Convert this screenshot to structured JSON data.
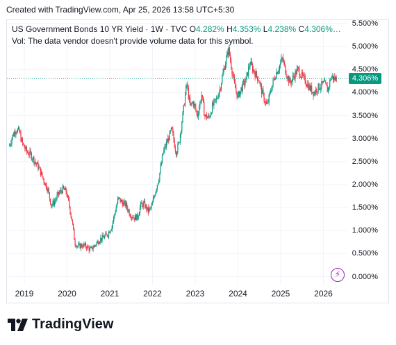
{
  "header": {
    "text": "Created with TradingView.com, Apr 25, 2026 13:58 UTC+5:30"
  },
  "legend": {
    "symbol": "US Government Bonds 10 YR Yield · 1W · TVC",
    "o_label": "O",
    "o_value": "4.282%",
    "h_label": "H",
    "h_value": "4.353%",
    "l_label": "L",
    "l_value": "4.238%",
    "c_label": "C",
    "c_value": "4.306%…",
    "volume_note": "Vol: The data vendor doesn't provide volume data for this symbol."
  },
  "last_price_label": "4.306%",
  "brand": {
    "name": "TradingView",
    "icon": "tradingview-logo-icon"
  },
  "colors": {
    "up": "#089981",
    "down": "#f23645",
    "accent": "#9c27b0",
    "grid": "#f0f3fa"
  },
  "chart_data": {
    "type": "candlestick",
    "title": "US Government Bonds 10 YR Yield · 1W · TVC",
    "ylabel": "",
    "y_unit": "%",
    "ylim": [
      -0.1,
      5.6
    ],
    "y_ticks": [
      "5.500%",
      "5.000%",
      "4.500%",
      "4.000%",
      "3.500%",
      "3.000%",
      "2.500%",
      "2.000%",
      "1.500%",
      "1.000%",
      "0.500%",
      "0.000%"
    ],
    "x_ticks": [
      "2019",
      "2020",
      "2021",
      "2022",
      "2023",
      "2024",
      "2025",
      "2026"
    ],
    "last_close": 4.306,
    "series": [
      {
        "name": "",
        "points": [
          {
            "t": 2018.65,
            "close": 2.85
          },
          {
            "t": 2018.72,
            "close": 3.05
          },
          {
            "t": 2018.8,
            "close": 3.2
          },
          {
            "t": 2018.88,
            "close": 3.15
          },
          {
            "t": 2018.95,
            "close": 2.9
          },
          {
            "t": 2019.05,
            "close": 2.72
          },
          {
            "t": 2019.15,
            "close": 2.65
          },
          {
            "t": 2019.25,
            "close": 2.5
          },
          {
            "t": 2019.35,
            "close": 2.35
          },
          {
            "t": 2019.45,
            "close": 2.1
          },
          {
            "t": 2019.55,
            "close": 1.9
          },
          {
            "t": 2019.63,
            "close": 1.55
          },
          {
            "t": 2019.72,
            "close": 1.65
          },
          {
            "t": 2019.8,
            "close": 1.8
          },
          {
            "t": 2019.9,
            "close": 1.9
          },
          {
            "t": 2019.98,
            "close": 1.85
          },
          {
            "t": 2020.05,
            "close": 1.55
          },
          {
            "t": 2020.12,
            "close": 1.2
          },
          {
            "t": 2020.18,
            "close": 0.75
          },
          {
            "t": 2020.25,
            "close": 0.65
          },
          {
            "t": 2020.35,
            "close": 0.68
          },
          {
            "t": 2020.45,
            "close": 0.66
          },
          {
            "t": 2020.55,
            "close": 0.58
          },
          {
            "t": 2020.65,
            "close": 0.68
          },
          {
            "t": 2020.75,
            "close": 0.8
          },
          {
            "t": 2020.85,
            "close": 0.85
          },
          {
            "t": 2020.95,
            "close": 0.92
          },
          {
            "t": 2021.05,
            "close": 1.1
          },
          {
            "t": 2021.12,
            "close": 1.4
          },
          {
            "t": 2021.2,
            "close": 1.7
          },
          {
            "t": 2021.28,
            "close": 1.62
          },
          {
            "t": 2021.38,
            "close": 1.55
          },
          {
            "t": 2021.48,
            "close": 1.35
          },
          {
            "t": 2021.58,
            "close": 1.28
          },
          {
            "t": 2021.65,
            "close": 1.3
          },
          {
            "t": 2021.72,
            "close": 1.55
          },
          {
            "t": 2021.8,
            "close": 1.58
          },
          {
            "t": 2021.9,
            "close": 1.42
          },
          {
            "t": 2021.98,
            "close": 1.52
          },
          {
            "t": 2022.05,
            "close": 1.8
          },
          {
            "t": 2022.15,
            "close": 2.15
          },
          {
            "t": 2022.25,
            "close": 2.7
          },
          {
            "t": 2022.35,
            "close": 2.95
          },
          {
            "t": 2022.45,
            "close": 3.2
          },
          {
            "t": 2022.55,
            "close": 2.7
          },
          {
            "t": 2022.62,
            "close": 2.9
          },
          {
            "t": 2022.72,
            "close": 3.6
          },
          {
            "t": 2022.8,
            "close": 4.2
          },
          {
            "t": 2022.88,
            "close": 3.7
          },
          {
            "t": 2022.95,
            "close": 3.8
          },
          {
            "t": 2023.05,
            "close": 3.5
          },
          {
            "t": 2023.15,
            "close": 3.95
          },
          {
            "t": 2023.22,
            "close": 3.5
          },
          {
            "t": 2023.32,
            "close": 3.45
          },
          {
            "t": 2023.4,
            "close": 3.7
          },
          {
            "t": 2023.5,
            "close": 3.85
          },
          {
            "t": 2023.58,
            "close": 4.1
          },
          {
            "t": 2023.68,
            "close": 4.55
          },
          {
            "t": 2023.78,
            "close": 4.95
          },
          {
            "t": 2023.85,
            "close": 4.55
          },
          {
            "t": 2023.92,
            "close": 4.15
          },
          {
            "t": 2024.0,
            "close": 3.9
          },
          {
            "t": 2024.08,
            "close": 4.1
          },
          {
            "t": 2024.18,
            "close": 4.25
          },
          {
            "t": 2024.28,
            "close": 4.65
          },
          {
            "t": 2024.38,
            "close": 4.45
          },
          {
            "t": 2024.48,
            "close": 4.3
          },
          {
            "t": 2024.58,
            "close": 3.95
          },
          {
            "t": 2024.68,
            "close": 3.7
          },
          {
            "t": 2024.78,
            "close": 4.1
          },
          {
            "t": 2024.88,
            "close": 4.4
          },
          {
            "t": 2024.96,
            "close": 4.55
          },
          {
            "t": 2025.04,
            "close": 4.75
          },
          {
            "t": 2025.12,
            "close": 4.45
          },
          {
            "t": 2025.22,
            "close": 4.2
          },
          {
            "t": 2025.3,
            "close": 4.35
          },
          {
            "t": 2025.4,
            "close": 4.5
          },
          {
            "t": 2025.5,
            "close": 4.35
          },
          {
            "t": 2025.58,
            "close": 4.25
          },
          {
            "t": 2025.68,
            "close": 4.1
          },
          {
            "t": 2025.78,
            "close": 4.0
          },
          {
            "t": 2025.86,
            "close": 4.1
          },
          {
            "t": 2025.94,
            "close": 4.15
          },
          {
            "t": 2026.02,
            "close": 4.2
          },
          {
            "t": 2026.1,
            "close": 4.05
          },
          {
            "t": 2026.18,
            "close": 4.35
          },
          {
            "t": 2026.26,
            "close": 4.3
          },
          {
            "t": 2026.31,
            "close": 4.306
          }
        ]
      }
    ]
  }
}
